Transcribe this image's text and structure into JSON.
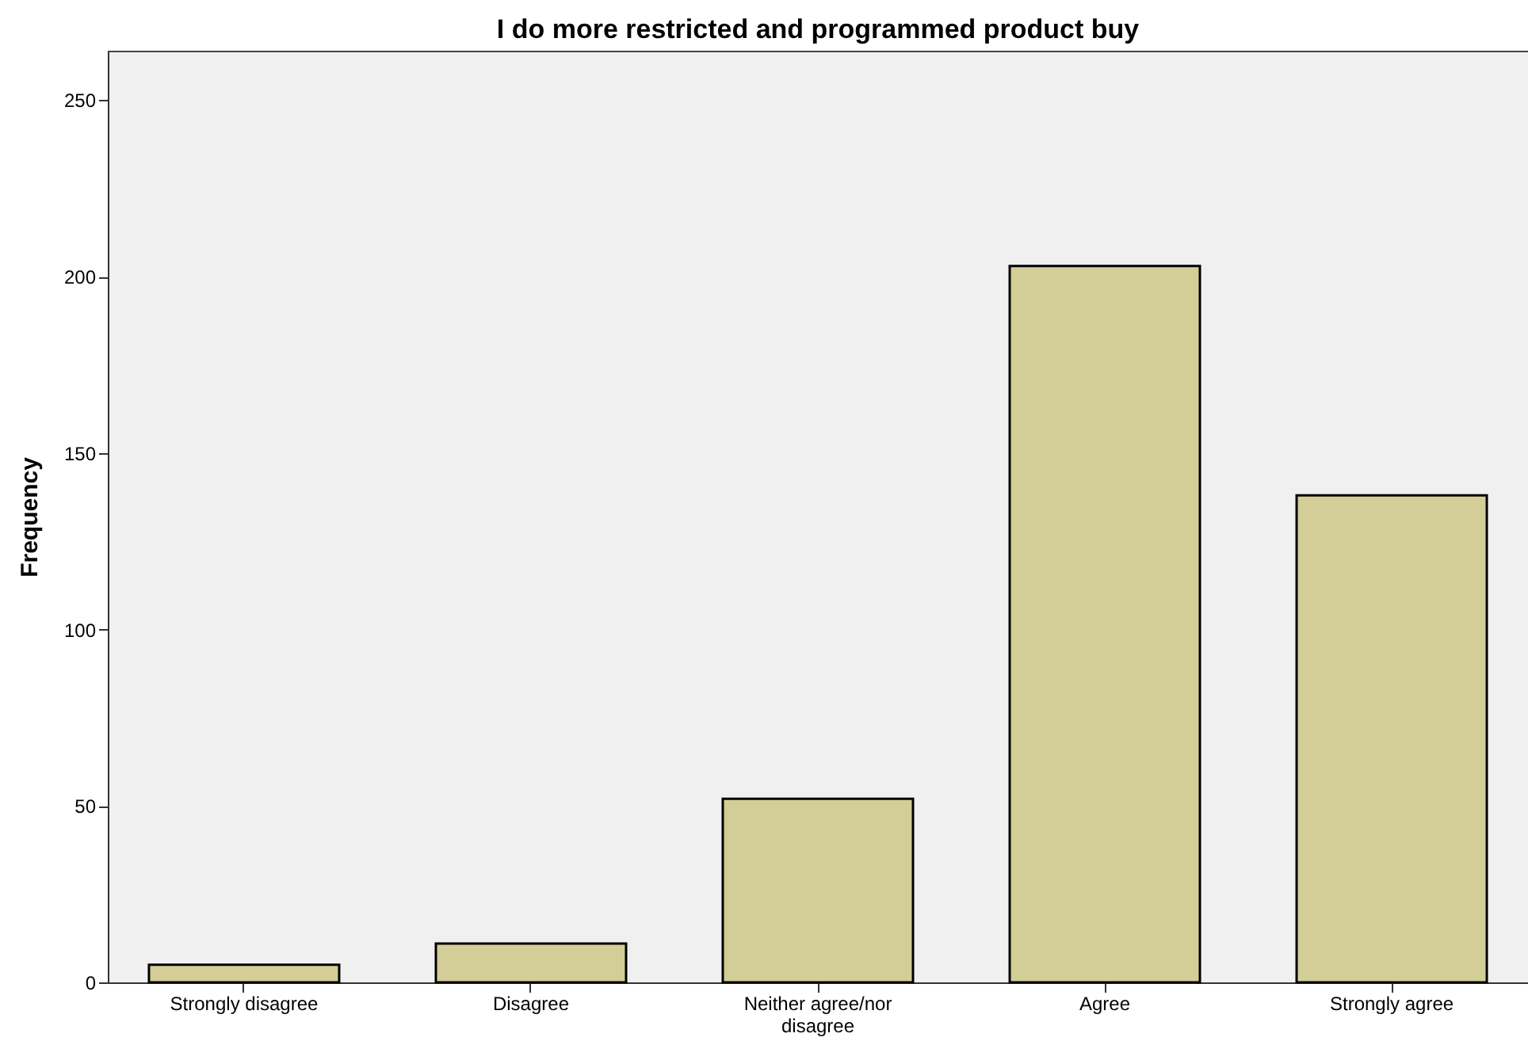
{
  "chart_data": {
    "type": "bar",
    "title": "I do more restricted and programmed product buy",
    "ylabel": "Frequency",
    "categories": [
      "Strongly disagree",
      "Disagree",
      "Neither agree/nor disagree",
      "Agree",
      "Strongly agree"
    ],
    "values": [
      5,
      11,
      52,
      203,
      138
    ],
    "color": "#d3ce97",
    "ylim": [
      0,
      264
    ],
    "yticks": [
      0,
      50,
      100,
      150,
      200,
      250
    ],
    "grid": false
  }
}
